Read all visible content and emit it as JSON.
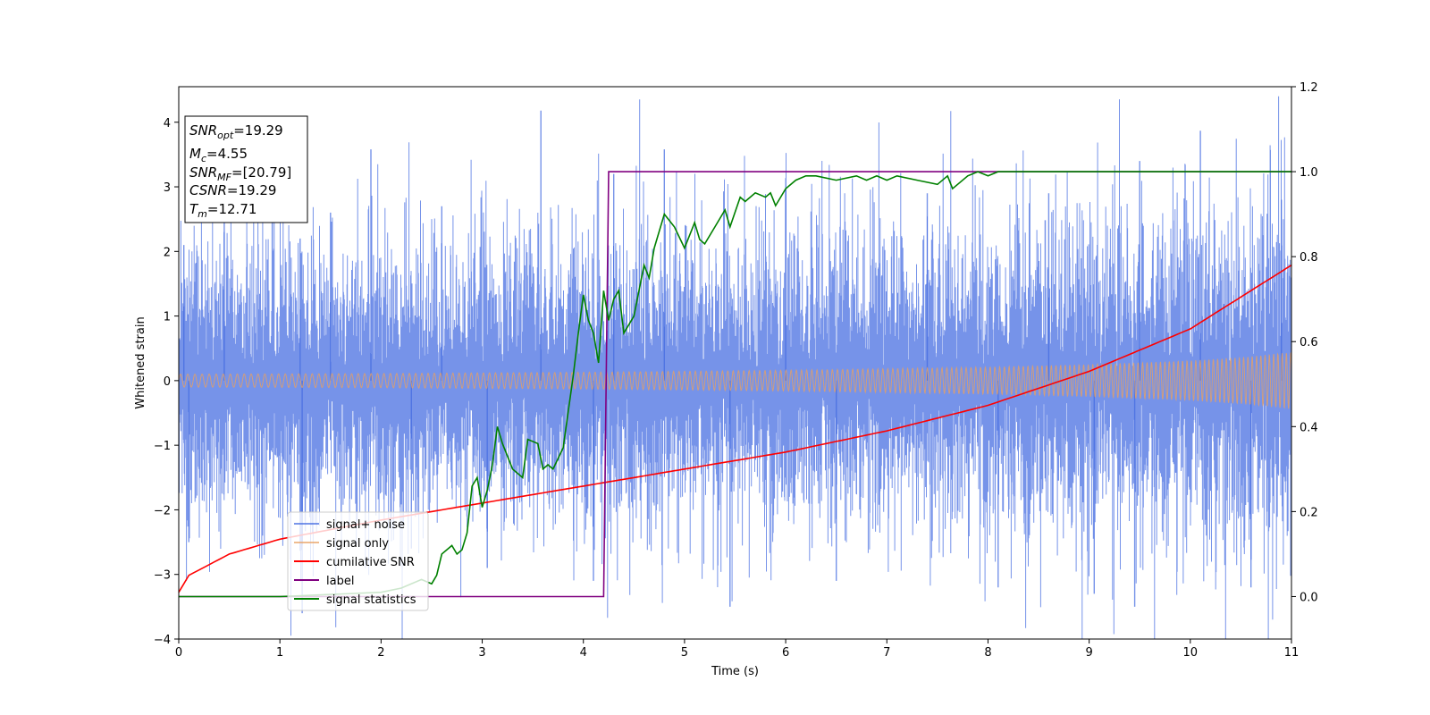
{
  "chart_data": {
    "type": "line",
    "xlabel": "Time (s)",
    "ylabel": "Whitened strain",
    "xlim": [
      0,
      11
    ],
    "ylim": [
      -4,
      4.55
    ],
    "y2lim": [
      -0.1,
      1.2
    ],
    "xticks": [
      0,
      1,
      2,
      3,
      4,
      5,
      6,
      7,
      8,
      9,
      10,
      11
    ],
    "yticks": [
      -4,
      -3,
      -2,
      -1,
      0,
      1,
      2,
      3,
      4
    ],
    "y2ticks": [
      0.0,
      0.2,
      0.4,
      0.6,
      0.8,
      1.0,
      1.2
    ],
    "legend_position": "bottom-left",
    "annotation": [
      {
        "base": "SNR",
        "sub": "opt",
        "value": "=19.29"
      },
      {
        "base": "M",
        "sub": "c",
        "value": "=4.55"
      },
      {
        "base": "SNR",
        "sub": "MF",
        "value": "=[20.79]"
      },
      {
        "base": "CSNR",
        "sub": "",
        "value": "=19.29"
      },
      {
        "base": "T",
        "sub": "m",
        "value": "=12.71"
      }
    ],
    "series": [
      {
        "name": "signal+ noise",
        "color": "#4169e1",
        "axis": "left",
        "envelope": {
          "x": [
            0,
            1,
            2,
            3,
            4,
            5,
            6,
            7,
            8,
            9,
            10,
            11
          ],
          "typical_upper": [
            1.3,
            1.3,
            1.3,
            1.3,
            1.3,
            1.3,
            1.3,
            1.35,
            1.4,
            1.45,
            1.55,
            1.7
          ],
          "typical_lower": [
            -1.3,
            -1.3,
            -1.3,
            -1.3,
            -1.3,
            -1.3,
            -1.3,
            -1.35,
            -1.4,
            -1.45,
            -1.55,
            -1.7
          ]
        },
        "spikes": [
          {
            "x": 0.05,
            "y": 2.1
          },
          {
            "x": 0.1,
            "y": -2.5
          },
          {
            "x": 0.45,
            "y": 2.8
          },
          {
            "x": 1.2,
            "y": 2.2
          },
          {
            "x": 1.22,
            "y": -3.6
          },
          {
            "x": 1.5,
            "y": 2.6
          },
          {
            "x": 1.9,
            "y": 3.58
          },
          {
            "x": 2.3,
            "y": -2.6
          },
          {
            "x": 2.6,
            "y": 2.7
          },
          {
            "x": 3.05,
            "y": -2.9
          },
          {
            "x": 3.58,
            "y": 4.18
          },
          {
            "x": 4.1,
            "y": -3.1
          },
          {
            "x": 4.3,
            "y": 3.2
          },
          {
            "x": 4.8,
            "y": 3.58
          },
          {
            "x": 5.45,
            "y": -3.5
          },
          {
            "x": 6.0,
            "y": 2.95
          },
          {
            "x": 6.5,
            "y": -3.1
          },
          {
            "x": 7.4,
            "y": 2.9
          },
          {
            "x": 8.1,
            "y": -3.2
          },
          {
            "x": 8.6,
            "y": 2.9
          },
          {
            "x": 9.05,
            "y": -3.3
          },
          {
            "x": 9.45,
            "y": -3.5
          },
          {
            "x": 9.5,
            "y": 3.4
          },
          {
            "x": 10.1,
            "y": 3.87
          },
          {
            "x": 10.6,
            "y": -3.2
          },
          {
            "x": 10.9,
            "y": 2.8
          }
        ]
      },
      {
        "name": "signal only",
        "color": "#e8a060",
        "axis": "left",
        "amplitude": {
          "x": [
            0,
            2,
            4,
            6,
            8,
            9,
            10,
            10.5,
            11
          ],
          "y": [
            0.1,
            0.11,
            0.13,
            0.16,
            0.21,
            0.25,
            0.31,
            0.36,
            0.44
          ]
        }
      },
      {
        "name": "cumilative SNR",
        "color": "#ff0000",
        "axis": "right",
        "x": [
          0,
          0.1,
          0.5,
          1,
          2,
          3,
          4,
          5,
          6,
          7,
          8,
          9,
          10,
          11
        ],
        "y": [
          0.01,
          0.05,
          0.1,
          0.135,
          0.18,
          0.22,
          0.26,
          0.3,
          0.34,
          0.39,
          0.45,
          0.53,
          0.63,
          0.78
        ]
      },
      {
        "name": "label",
        "color": "#800080",
        "axis": "right",
        "x": [
          0,
          4.2,
          4.25,
          11
        ],
        "y": [
          0,
          0,
          1,
          1
        ]
      },
      {
        "name": "signal statistics",
        "color": "#008000",
        "axis": "right",
        "x": [
          0,
          1,
          2,
          2.2,
          2.4,
          2.5,
          2.55,
          2.6,
          2.7,
          2.75,
          2.8,
          2.85,
          2.9,
          2.95,
          3.0,
          3.05,
          3.1,
          3.15,
          3.2,
          3.3,
          3.4,
          3.45,
          3.55,
          3.6,
          3.65,
          3.7,
          3.8,
          3.9,
          3.95,
          4.0,
          4.05,
          4.1,
          4.15,
          4.2,
          4.25,
          4.3,
          4.35,
          4.4,
          4.45,
          4.5,
          4.6,
          4.65,
          4.7,
          4.8,
          4.9,
          5.0,
          5.1,
          5.15,
          5.2,
          5.3,
          5.4,
          5.45,
          5.55,
          5.6,
          5.7,
          5.8,
          5.85,
          5.9,
          6.0,
          6.1,
          6.2,
          6.3,
          6.5,
          6.7,
          6.8,
          6.9,
          7.0,
          7.1,
          7.3,
          7.5,
          7.6,
          7.65,
          7.8,
          7.9,
          8.0,
          8.1,
          8.3,
          8.6,
          9.0,
          9.5,
          10.0,
          11.0
        ],
        "y": [
          0.0,
          0.0,
          0.01,
          0.02,
          0.04,
          0.03,
          0.05,
          0.1,
          0.12,
          0.1,
          0.11,
          0.15,
          0.26,
          0.28,
          0.21,
          0.25,
          0.31,
          0.4,
          0.36,
          0.3,
          0.28,
          0.37,
          0.36,
          0.3,
          0.31,
          0.3,
          0.35,
          0.52,
          0.62,
          0.71,
          0.65,
          0.62,
          0.55,
          0.72,
          0.65,
          0.7,
          0.72,
          0.62,
          0.64,
          0.66,
          0.78,
          0.75,
          0.82,
          0.9,
          0.87,
          0.82,
          0.88,
          0.84,
          0.83,
          0.87,
          0.91,
          0.87,
          0.94,
          0.93,
          0.95,
          0.94,
          0.95,
          0.92,
          0.96,
          0.98,
          0.99,
          0.99,
          0.98,
          0.99,
          0.98,
          0.99,
          0.98,
          0.99,
          0.98,
          0.97,
          0.99,
          0.96,
          0.99,
          1.0,
          0.99,
          1.0,
          1.0,
          1.0,
          1.0,
          1.0,
          1.0,
          1.0
        ]
      }
    ]
  }
}
